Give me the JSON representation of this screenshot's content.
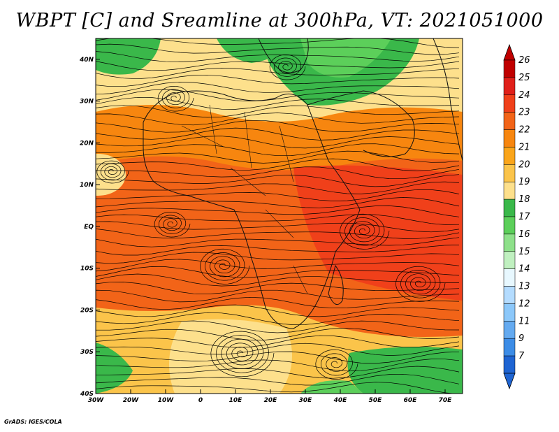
{
  "title": "WBPT [C] and Sreamline at 300hPa, VT: 2021051000",
  "credit": "GrADS: IGES/COLA",
  "map": {
    "lon_ticks": [
      "30W",
      "20W",
      "10W",
      "0",
      "10E",
      "20E",
      "30E",
      "40E",
      "50E",
      "60E",
      "70E"
    ],
    "lat_ticks": [
      "40N",
      "30N",
      "20N",
      "10N",
      "EQ",
      "10S",
      "20S",
      "30S",
      "40S"
    ]
  },
  "colorbar": {
    "labels": [
      "26",
      "25",
      "24",
      "23",
      "22",
      "21",
      "20",
      "19",
      "18",
      "17",
      "16",
      "15",
      "14",
      "13",
      "12",
      "11",
      "9",
      "7"
    ],
    "colors": [
      "#c00000",
      "#e0201a",
      "#f0401a",
      "#f26418",
      "#f7860f",
      "#faa51a",
      "#fbc44a",
      "#fde08c",
      "#3ab84a",
      "#5ccf5a",
      "#8ee08a",
      "#c0f0c0",
      "#e8f8ff",
      "#b4dcff",
      "#8cc8fa",
      "#64aaf0",
      "#3c8ce6",
      "#1e64d2"
    ]
  }
}
